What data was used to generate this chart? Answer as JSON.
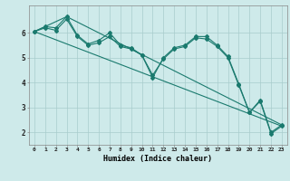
{
  "xlabel": "Humidex (Indice chaleur)",
  "bg_color": "#ceeaea",
  "line_color": "#1a7a6e",
  "grid_color": "#a8cccc",
  "xlim": [
    -0.5,
    23.5
  ],
  "ylim": [
    1.5,
    7.1
  ],
  "yticks": [
    2,
    3,
    4,
    5,
    6
  ],
  "xticks": [
    0,
    1,
    2,
    3,
    4,
    5,
    6,
    7,
    8,
    9,
    10,
    11,
    12,
    13,
    14,
    15,
    16,
    17,
    18,
    19,
    20,
    21,
    22,
    23
  ],
  "series_main1": {
    "x": [
      0,
      1,
      2,
      3,
      4,
      5,
      6,
      7,
      8,
      9,
      10,
      11,
      12,
      13,
      14,
      15,
      16,
      17,
      18,
      19,
      20,
      21,
      22,
      23
    ],
    "y": [
      6.05,
      6.25,
      6.2,
      6.65,
      5.9,
      5.55,
      5.7,
      6.0,
      5.5,
      5.4,
      5.1,
      4.2,
      5.0,
      5.4,
      5.5,
      5.85,
      5.85,
      5.5,
      5.05,
      3.95,
      2.8,
      3.3,
      2.0,
      2.3
    ]
  },
  "series_main2": {
    "x": [
      0,
      1,
      2,
      3,
      4,
      5,
      6,
      7,
      8,
      9,
      10,
      11,
      12,
      13,
      14,
      15,
      16,
      17,
      18,
      19,
      20,
      21,
      22,
      23
    ],
    "y": [
      6.05,
      6.2,
      6.1,
      6.55,
      5.85,
      5.5,
      5.6,
      5.85,
      5.45,
      5.35,
      5.1,
      4.3,
      4.95,
      5.35,
      5.45,
      5.8,
      5.75,
      5.45,
      5.0,
      3.9,
      2.8,
      3.25,
      1.95,
      2.25
    ]
  },
  "series_line1": {
    "x": [
      0,
      23
    ],
    "y": [
      6.05,
      2.25
    ]
  },
  "series_line2": {
    "x": [
      0,
      3,
      23
    ],
    "y": [
      6.05,
      6.65,
      2.3
    ]
  }
}
